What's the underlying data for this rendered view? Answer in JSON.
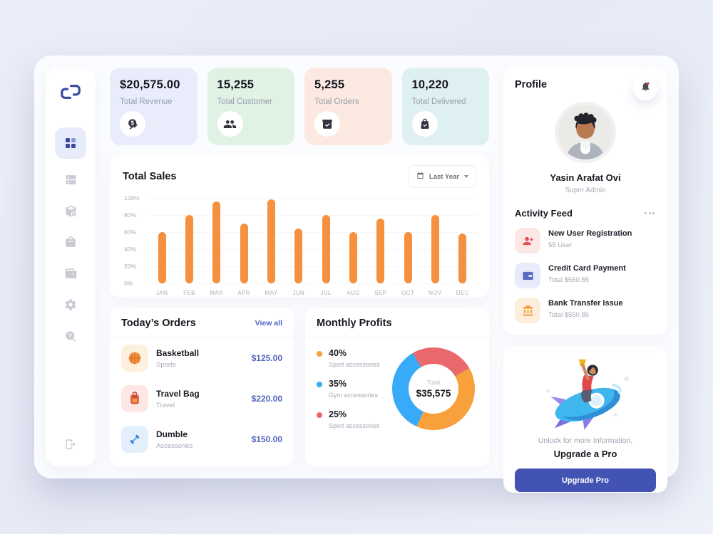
{
  "window": {
    "bg": "#E9ECF6",
    "surface": "#FBFCFF"
  },
  "sidebar": {
    "logo_icon": "s-link-logo",
    "items": [
      {
        "id": "dashboard",
        "icon": "grid-icon",
        "active": true
      },
      {
        "id": "orders",
        "icon": "list-icon",
        "active": false
      },
      {
        "id": "products",
        "icon": "box-clock-icon",
        "active": false
      },
      {
        "id": "shop",
        "icon": "bag-icon",
        "active": false
      },
      {
        "id": "wallet",
        "icon": "wallet-icon",
        "active": false
      },
      {
        "id": "settings",
        "icon": "gear-icon",
        "active": false
      },
      {
        "id": "support",
        "icon": "help-icon",
        "active": false
      },
      {
        "id": "logout",
        "icon": "logout-icon",
        "active": false
      }
    ]
  },
  "stats": [
    {
      "value": "$20,575.00",
      "label": "Total Revenue",
      "bg": "#E9EDFB",
      "icon": "coin-growth-icon"
    },
    {
      "value": "15,255",
      "label": "Total Customer",
      "bg": "#DFF2E4",
      "icon": "customers-icon"
    },
    {
      "value": "5,255",
      "label": "Total Orders",
      "bg": "#FCE9E1",
      "icon": "order-box-icon"
    },
    {
      "value": "10,220",
      "label": "Total Delivered",
      "bg": "#DFF0F2",
      "icon": "delivered-bag-icon"
    }
  ],
  "sales_card": {
    "filter_label": "Last Year",
    "filter_icon": "calendar-icon"
  },
  "chart_data": [
    {
      "type": "bar",
      "title": "Total Sales",
      "categories": [
        "JAN",
        "FEB",
        "MAR",
        "APR",
        "MAY",
        "JUN",
        "JUL",
        "AUG",
        "SEP",
        "OCT",
        "NOV",
        "DEC"
      ],
      "values": [
        60,
        80,
        96,
        70,
        98,
        64,
        80,
        60,
        76,
        60,
        80,
        58
      ],
      "xlabel": "",
      "ylabel": "",
      "ylim": [
        0,
        100
      ],
      "ytick_labels": [
        "100%",
        "80%",
        "60%",
        "40%",
        "20%",
        "0%"
      ],
      "grid": true,
      "legend": "none",
      "bar_color": "#F5913E"
    },
    {
      "type": "pie",
      "title": "Monthly Profits",
      "style": "donut",
      "center": {
        "label": "Total",
        "value": "$35,575"
      },
      "segments": [
        {
          "label": "Sport accessories",
          "pct": "40%",
          "value": 40,
          "color": "#F7A03C"
        },
        {
          "label": "Gym accessories",
          "pct": "35%",
          "value": 35,
          "color": "#38ABF8"
        },
        {
          "label": "Sport accessories",
          "pct": "25%",
          "value": 25,
          "color": "#E9686B"
        }
      ],
      "legend_position": "left"
    }
  ],
  "orders": {
    "title": "Today’s Orders",
    "view_all": "View all",
    "items": [
      {
        "name": "Basketball",
        "category": "Sports",
        "price": "$125.00",
        "icon": "basketball-icon",
        "tile_bg": "#FDF0DC"
      },
      {
        "name": "Travel Bag",
        "category": "Travel",
        "price": "$220.00",
        "icon": "backpack-icon",
        "tile_bg": "#FCE7E4"
      },
      {
        "name": "Dumble",
        "category": "Accessories",
        "price": "$150.00",
        "icon": "dumbbell-icon",
        "tile_bg": "#E3F0FC"
      }
    ]
  },
  "profits": {
    "title": "Monthly Profits"
  },
  "profile": {
    "title": "Profile",
    "name": "Yasin Arafat Ovi",
    "role": "Super Admin",
    "notification_icon": "bell-icon"
  },
  "activity": {
    "title": "Activity Feed",
    "menu_icon": "more-dots-icon",
    "items": [
      {
        "title": "New User Registration",
        "subtitle": "55 User",
        "icon": "user-add-icon",
        "tile_bg": "#FCE6E6"
      },
      {
        "title": "Credit Card Payment",
        "subtitle": "Total $550.85",
        "icon": "credit-card-icon",
        "tile_bg": "#E8EBFB"
      },
      {
        "title": "Bank Transfer Issue",
        "subtitle": "Total $550.85",
        "icon": "bank-icon",
        "tile_bg": "#FDEEDC"
      }
    ]
  },
  "upgrade": {
    "line1": "Unlock for more Information,",
    "line2": "Upgrade a Pro",
    "button": "Upgrade Pro",
    "button_bg": "#4353B4",
    "illustration": "rocket-rider-illustration"
  },
  "colors": {
    "accent": "#4353B4",
    "price_text": "#5265BE",
    "active_nav": "#3D4A9F"
  }
}
